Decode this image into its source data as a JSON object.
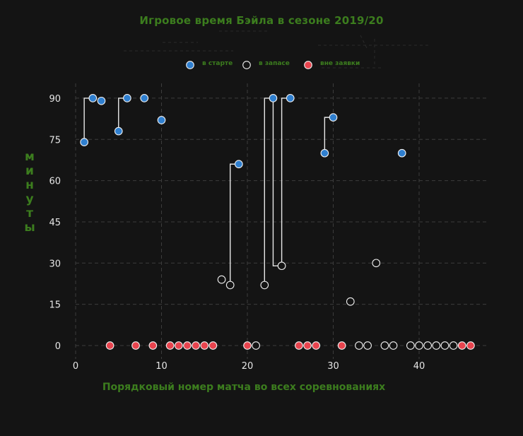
{
  "chart_data": {
    "type": "scatter",
    "title": "Игровое время Бэйла в сезоне 2019/20",
    "xlabel": "Порядковый номер матча во  всех соревнованиях",
    "ylabel": "минуты",
    "xlim": [
      -1,
      48
    ],
    "ylim": [
      -5,
      96
    ],
    "xticks": [
      0,
      10,
      20,
      30,
      40
    ],
    "yticks": [
      0,
      15,
      30,
      45,
      60,
      75,
      90
    ],
    "grid": true,
    "legend_position": "top",
    "series": [
      {
        "name": "в старте",
        "color": "#2f7fcf",
        "points": [
          [
            1,
            74
          ],
          [
            2,
            90
          ],
          [
            3,
            89
          ],
          [
            5,
            78
          ],
          [
            6,
            90
          ],
          [
            8,
            90
          ],
          [
            10,
            82
          ],
          [
            19,
            66
          ],
          [
            23,
            90
          ],
          [
            25,
            90
          ],
          [
            29,
            70
          ],
          [
            30,
            83
          ],
          [
            38,
            70
          ]
        ]
      },
      {
        "name": "в запасе",
        "color": "#141414",
        "points": [
          [
            17,
            24
          ],
          [
            18,
            22
          ],
          [
            21,
            0
          ],
          [
            22,
            22
          ],
          [
            24,
            29
          ],
          [
            32,
            16
          ],
          [
            33,
            0
          ],
          [
            34,
            0
          ],
          [
            35,
            30
          ],
          [
            36,
            0
          ],
          [
            37,
            0
          ],
          [
            39,
            0
          ],
          [
            40,
            0
          ],
          [
            41,
            0
          ],
          [
            42,
            0
          ],
          [
            43,
            0
          ],
          [
            44,
            0
          ]
        ]
      },
      {
        "name": "вне заявки",
        "color": "#e8444e",
        "points": [
          [
            4,
            0
          ],
          [
            7,
            0
          ],
          [
            9,
            0
          ],
          [
            11,
            0
          ],
          [
            12,
            0
          ],
          [
            13,
            0
          ],
          [
            14,
            0
          ],
          [
            15,
            0
          ],
          [
            16,
            0
          ],
          [
            20,
            0
          ],
          [
            26,
            0
          ],
          [
            27,
            0
          ],
          [
            28,
            0
          ],
          [
            31,
            0
          ],
          [
            45,
            0
          ],
          [
            46,
            0
          ]
        ]
      }
    ],
    "substitution_links": [
      [
        [
          1,
          74
        ],
        [
          1,
          90
        ],
        [
          2,
          90
        ]
      ],
      [
        [
          5,
          78
        ],
        [
          5,
          90
        ],
        [
          6,
          90
        ]
      ],
      [
        [
          18,
          22
        ],
        [
          18,
          66
        ],
        [
          19,
          66
        ]
      ],
      [
        [
          22,
          22
        ],
        [
          22,
          90
        ],
        [
          23,
          90
        ]
      ],
      [
        [
          23,
          90
        ],
        [
          23,
          29
        ],
        [
          24,
          29
        ]
      ],
      [
        [
          24,
          29
        ],
        [
          24,
          90
        ],
        [
          25,
          90
        ]
      ],
      [
        [
          29,
          70
        ],
        [
          29,
          83
        ],
        [
          30,
          83
        ]
      ]
    ]
  }
}
